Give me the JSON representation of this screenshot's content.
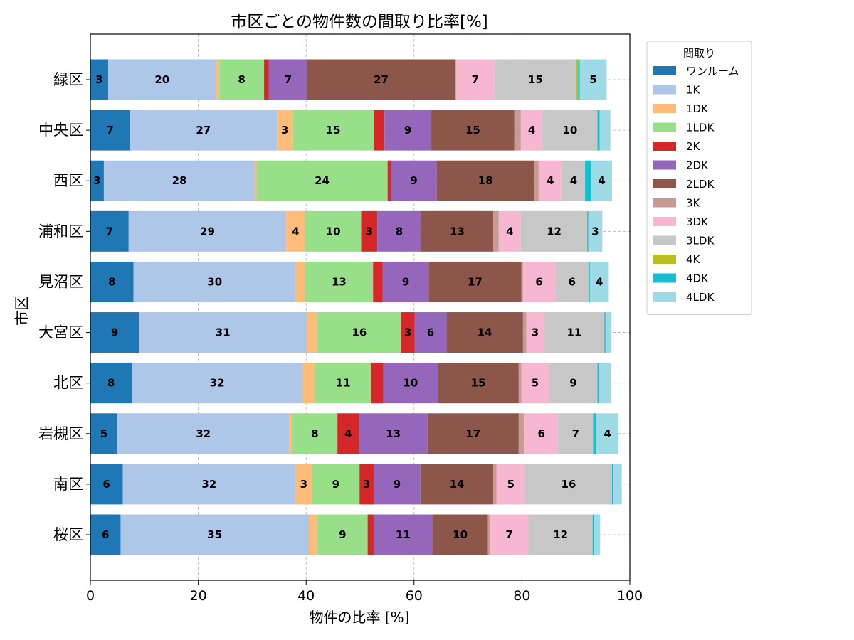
{
  "chart_data": {
    "type": "bar",
    "orientation": "horizontal",
    "stacked": true,
    "title": "市区ごとの物件数の間取り比率[%]",
    "xlabel": "物件の比率 [%]",
    "ylabel": "市区",
    "xlim": [
      0,
      100
    ],
    "xticks": [
      0,
      20,
      40,
      60,
      80,
      100
    ],
    "grid": true,
    "legend": {
      "title": "間取り",
      "placement": "outside-right"
    },
    "categories": [
      "緑区",
      "中央区",
      "西区",
      "浦和区",
      "見沼区",
      "大宮区",
      "北区",
      "岩槻区",
      "南区",
      "桜区"
    ],
    "series": [
      {
        "name": "ワンルーム",
        "color": "#1f77b4",
        "values": [
          3.3,
          7.3,
          2.5,
          7.1,
          8.0,
          9.0,
          7.7,
          5.0,
          6.0,
          5.6
        ]
      },
      {
        "name": "1K",
        "color": "#aec7e8",
        "values": [
          20.0,
          27.3,
          28.0,
          29.2,
          30.1,
          31.1,
          31.6,
          31.9,
          32.0,
          34.9
        ]
      },
      {
        "name": "1DK",
        "color": "#ffbb78",
        "values": [
          0.6,
          2.9,
          0.3,
          3.5,
          1.7,
          2.0,
          2.3,
          0.5,
          3.1,
          1.6
        ]
      },
      {
        "name": "1LDK",
        "color": "#98df8a",
        "values": [
          8.3,
          15.0,
          24.3,
          10.4,
          12.6,
          15.5,
          10.5,
          8.4,
          8.8,
          9.3
        ]
      },
      {
        "name": "2K",
        "color": "#d62728",
        "values": [
          0.9,
          2.0,
          0.6,
          3.0,
          1.8,
          2.5,
          2.2,
          4.0,
          2.6,
          1.1
        ]
      },
      {
        "name": "2DK",
        "color": "#9467bd",
        "values": [
          7.1,
          8.7,
          8.5,
          8.1,
          8.5,
          5.9,
          10.1,
          12.7,
          8.7,
          10.9
        ]
      },
      {
        "name": "2LDK",
        "color": "#8c564b",
        "values": [
          27.4,
          15.4,
          18.1,
          13.4,
          17.2,
          14.2,
          15.0,
          16.9,
          13.5,
          10.3
        ]
      },
      {
        "name": "3K",
        "color": "#c49c94",
        "values": [
          0.2,
          1.2,
          0.8,
          1.0,
          0.3,
          0.6,
          0.5,
          1.1,
          0.6,
          0.4
        ]
      },
      {
        "name": "3DK",
        "color": "#f7b6d2",
        "values": [
          7.1,
          4.0,
          4.3,
          4.1,
          6.0,
          3.3,
          5.1,
          6.2,
          5.3,
          7.1
        ]
      },
      {
        "name": "3LDK",
        "color": "#c7c7c7",
        "values": [
          15.2,
          10.2,
          4.3,
          12.3,
          6.2,
          11.2,
          9.0,
          6.5,
          16.1,
          11.9
        ]
      },
      {
        "name": "4K",
        "color": "#bcbd22",
        "values": [
          0.3,
          0.0,
          0.0,
          0.0,
          0.0,
          0.0,
          0.0,
          0.0,
          0.0,
          0.0
        ]
      },
      {
        "name": "4DK",
        "color": "#17becf",
        "values": [
          0.3,
          0.4,
          1.2,
          0.2,
          0.2,
          0.2,
          0.3,
          0.6,
          0.2,
          0.3
        ]
      },
      {
        "name": "4LDK",
        "color": "#9edae5",
        "values": [
          5.0,
          2.0,
          3.8,
          2.6,
          3.5,
          1.1,
          2.2,
          4.1,
          1.6,
          1.1
        ]
      }
    ]
  }
}
